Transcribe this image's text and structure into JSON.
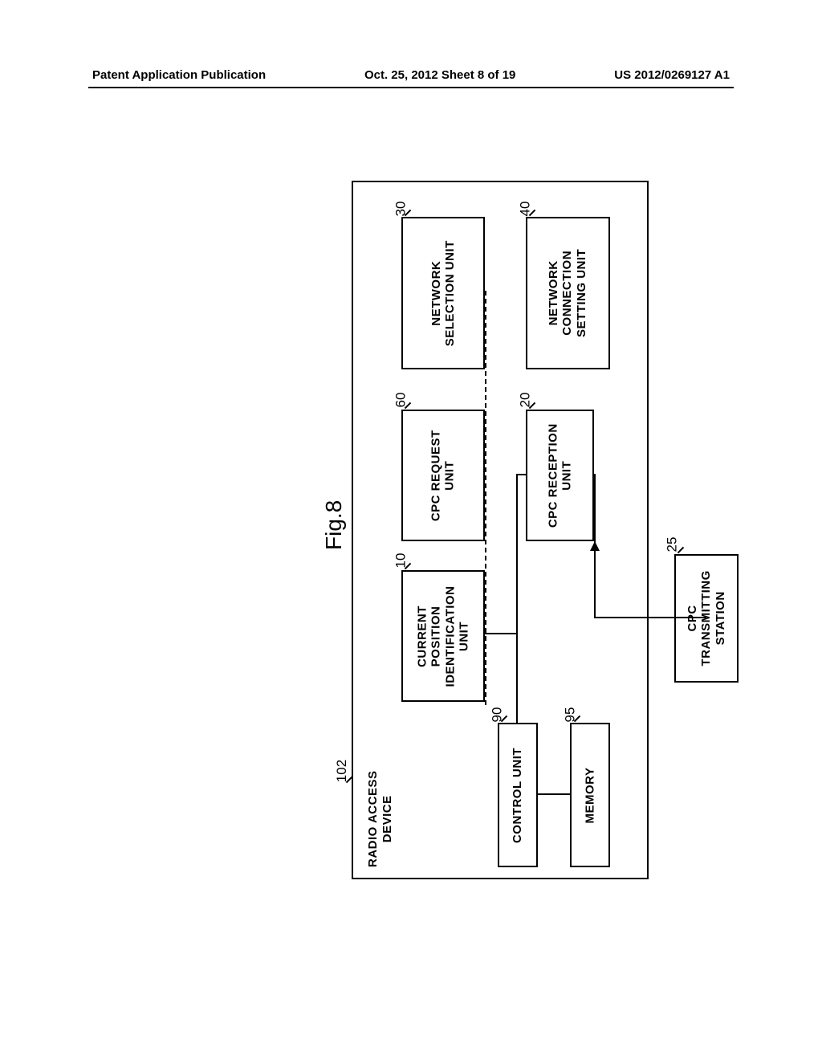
{
  "header": {
    "left": "Patent Application Publication",
    "center": "Oct. 25, 2012  Sheet 8 of 19",
    "right": "US 2012/0269127 A1"
  },
  "figure": {
    "label": "Fig.8",
    "device_label": "RADIO ACCESS\nDEVICE",
    "device_ref": "102",
    "units": {
      "current_position": {
        "label": "CURRENT\nPOSITION\nIDENTIFICATION\nUNIT",
        "ref": "10"
      },
      "cpc_request": {
        "label": "CPC REQUEST\nUNIT",
        "ref": "60"
      },
      "network_selection": {
        "label": "NETWORK\nSELECTION UNIT",
        "ref": "30"
      },
      "cpc_reception": {
        "label": "CPC RECEPTION\nUNIT",
        "ref": "20"
      },
      "network_connection": {
        "label": "NETWORK\nCONNECTION\nSETTING UNIT",
        "ref": "40"
      },
      "control": {
        "label": "CONTROL UNIT",
        "ref": "90"
      },
      "memory": {
        "label": "MEMORY",
        "ref": "95"
      },
      "cpc_transmitting": {
        "label": "CPC\nTRANSMITTING\nSTATION",
        "ref": "25"
      }
    }
  },
  "colors": {
    "line": "#000000",
    "background": "#ffffff",
    "text": "#000000"
  }
}
